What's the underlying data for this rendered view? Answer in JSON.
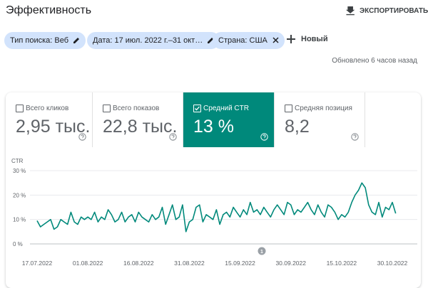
{
  "header": {
    "title": "Эффективность",
    "export": "ЭКСПОРТИРОВАТЬ"
  },
  "filters": [
    "Тип поиска: Веб",
    "Дата: 17 июл. 2022 г.–31 окт…",
    "Страна: США"
  ],
  "new_filter": "Новый",
  "updated": "Обновлено 6 часов назад",
  "metrics": [
    {
      "label": "Всего кликов",
      "value": "2,95 тыс.",
      "selected": false
    },
    {
      "label": "Всего показов",
      "value": "22,8 тыс.",
      "selected": false
    },
    {
      "label": "Средний CTR",
      "value": "13 %",
      "selected": true
    },
    {
      "label": "Средняя позиция",
      "value": "8,2",
      "selected": false
    }
  ],
  "chart_data": {
    "type": "line",
    "y_label": "CTR",
    "color": "#00897b",
    "grid": true,
    "ylim": [
      0,
      30
    ],
    "yticks": [
      {
        "value": 0,
        "label": "0 %"
      },
      {
        "value": 10,
        "label": "10 %"
      },
      {
        "value": 20,
        "label": "20 %"
      },
      {
        "value": 30,
        "label": "30 %"
      }
    ],
    "annotations": [
      {
        "text": "1"
      }
    ],
    "categories": [
      "17.07.2022",
      null,
      null,
      null,
      null,
      null,
      null,
      null,
      null,
      null,
      null,
      null,
      null,
      null,
      null,
      "01.08.2022",
      null,
      null,
      null,
      null,
      null,
      null,
      null,
      null,
      null,
      null,
      null,
      null,
      null,
      null,
      "16.08.2022",
      null,
      null,
      null,
      null,
      null,
      null,
      null,
      null,
      null,
      null,
      null,
      null,
      null,
      null,
      "31.08.2022",
      null,
      null,
      null,
      null,
      null,
      null,
      null,
      null,
      null,
      null,
      null,
      null,
      null,
      null,
      "15.09.2022",
      null,
      null,
      null,
      null,
      null,
      null,
      null,
      null,
      null,
      null,
      null,
      null,
      null,
      null,
      "30.09.2022",
      null,
      null,
      null,
      null,
      null,
      null,
      null,
      null,
      null,
      null,
      null,
      null,
      null,
      null,
      "15.10.2022",
      null,
      null,
      null,
      null,
      null,
      null,
      null,
      null,
      null,
      null,
      null,
      null,
      null,
      null,
      "30.10.2022",
      null
    ],
    "values": [
      9.5,
      7,
      8,
      9,
      10,
      6,
      7,
      10,
      9,
      8,
      13,
      9,
      8,
      11,
      10,
      11,
      10,
      13,
      9,
      11,
      10,
      14,
      12,
      9,
      10,
      13,
      9,
      11,
      12,
      9,
      13,
      11,
      10,
      9,
      12,
      10,
      11,
      15,
      8,
      12,
      16,
      10,
      11,
      16,
      5,
      9,
      10,
      15,
      16,
      9,
      12,
      11,
      10,
      14,
      8,
      12,
      13,
      11,
      15,
      13,
      11,
      14,
      12,
      17,
      13,
      14,
      12,
      15,
      13,
      11,
      14,
      16,
      14,
      12,
      17,
      16,
      12,
      14,
      13,
      15,
      17,
      14,
      12,
      16,
      13,
      11,
      16,
      15,
      13,
      10,
      12,
      11,
      13,
      17,
      20,
      22,
      25,
      23,
      16,
      13,
      12,
      17,
      11,
      15,
      14,
      17,
      12.5
    ]
  }
}
